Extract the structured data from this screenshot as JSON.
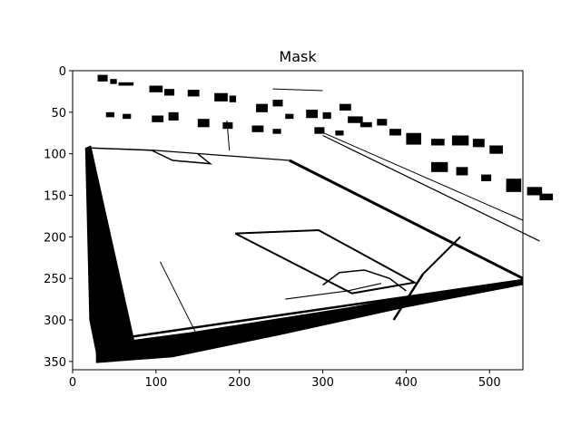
{
  "chart_data": {
    "type": "heatmap",
    "title": "Mask",
    "xlabel": "",
    "ylabel": "",
    "xlim": [
      0,
      540
    ],
    "ylim": [
      360,
      0
    ],
    "xticks": [
      0,
      100,
      200,
      300,
      400,
      500
    ],
    "yticks": [
      0,
      50,
      100,
      150,
      200,
      250,
      300,
      350
    ],
    "colormap": {
      "0": "#ffffff",
      "1": "#000000"
    },
    "image_shape": [
      360,
      540
    ]
  }
}
